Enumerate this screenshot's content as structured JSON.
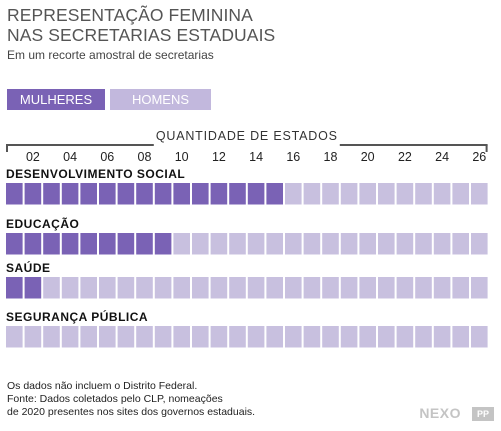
{
  "title": "REPRESENTAÇÃO FEMININA\nNAS SECRETARIAS ESTADUAIS",
  "subtitle": "Em um recorte amostral de secretarias",
  "legend": {
    "women": "MULHERES",
    "men": "HOMENS"
  },
  "colors": {
    "women": "#7a62b5",
    "men": "#c8c0df",
    "bracket": "#555555"
  },
  "chart_data": {
    "type": "bar",
    "xlabel": "QUANTIDADE DE ESTADOS",
    "xticks": [
      "02",
      "04",
      "06",
      "08",
      "10",
      "12",
      "14",
      "16",
      "18",
      "20",
      "22",
      "24",
      "26"
    ],
    "xlim": [
      0,
      26
    ],
    "total_units": 26,
    "categories": [
      "DESENVOLVIMENTO SOCIAL",
      "EDUCAÇÃO",
      "SAÚDE",
      "SEGURANÇA PÚBLICA"
    ],
    "series": [
      {
        "name": "MULHERES",
        "values": [
          15,
          9,
          2,
          0
        ]
      },
      {
        "name": "HOMENS",
        "values": [
          11,
          17,
          24,
          26
        ]
      }
    ]
  },
  "footnote": "Os dados não incluem o Distrito Federal.\nFonte: Dados coletados pelo CLP, nomeações\nde 2020 presentes nos sites dos governos estaduais.",
  "logo": {
    "text": "NEXO",
    "mark": "PP"
  }
}
